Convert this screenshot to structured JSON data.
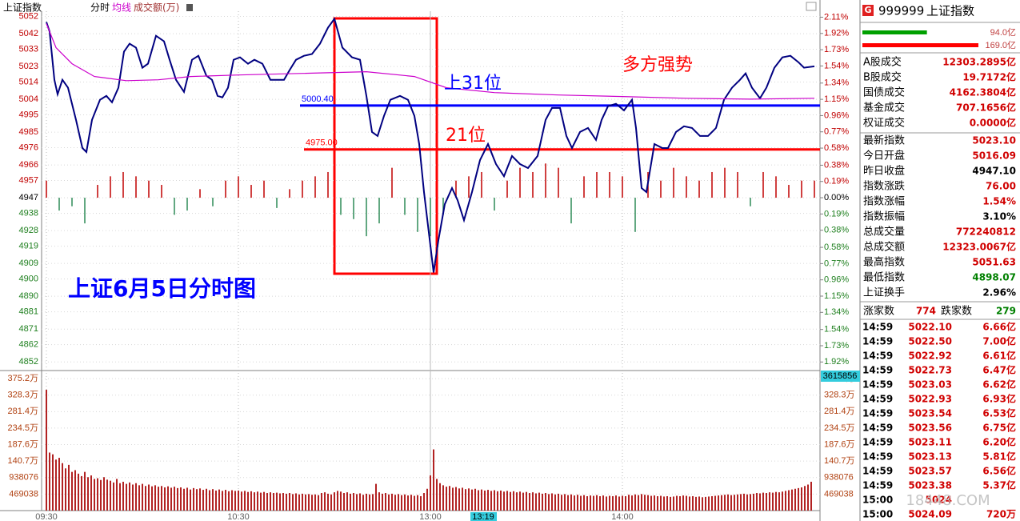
{
  "toolbar": {
    "title": "上证指数"
  },
  "chart_data": [
    {
      "type": "line",
      "xlim": [
        0,
        240
      ],
      "xticks": [
        {
          "value": 0,
          "label": "09:30"
        },
        {
          "value": 60,
          "label": "10:30"
        },
        {
          "value": 120,
          "label": "13:00"
        },
        {
          "value": 180,
          "label": "14:00"
        }
      ],
      "ylim": [
        4847,
        5055
      ],
      "yticks": [
        5052,
        5042,
        5033,
        5023,
        5014,
        5004,
        4995,
        4985,
        4976,
        4966,
        4957,
        4947,
        4938,
        4928,
        4919,
        4909,
        4900,
        4890,
        4881,
        4871,
        4862,
        4852
      ],
      "y2lim": [
        -2.02,
        2.18
      ],
      "y2ticks": [
        {
          "value": 2.11,
          "label": "2.11%"
        },
        {
          "value": 1.92,
          "label": "1.92%"
        },
        {
          "value": 1.73,
          "label": "1.73%"
        },
        {
          "value": 1.54,
          "label": "1.54%"
        },
        {
          "value": 1.34,
          "label": "1.34%"
        },
        {
          "value": 1.15,
          "label": "1.15%"
        },
        {
          "value": 0.96,
          "label": "0.96%"
        },
        {
          "value": 0.77,
          "label": "0.77%"
        },
        {
          "value": 0.58,
          "label": "0.58%"
        },
        {
          "value": 0.38,
          "label": "0.38%"
        },
        {
          "value": 0.19,
          "label": "0.19%"
        },
        {
          "value": 0,
          "label": "0.00%"
        },
        {
          "value": -0.19,
          "label": "0.19%"
        },
        {
          "value": -0.38,
          "label": "0.38%"
        },
        {
          "value": -0.58,
          "label": "0.58%"
        },
        {
          "value": -0.77,
          "label": "0.77%"
        },
        {
          "value": -0.96,
          "label": "0.96%"
        },
        {
          "value": -1.15,
          "label": "1.15%"
        },
        {
          "value": -1.34,
          "label": "1.34%"
        },
        {
          "value": -1.54,
          "label": "1.54%"
        },
        {
          "value": -1.73,
          "label": "1.73%"
        },
        {
          "value": -1.92,
          "label": "1.92%"
        }
      ],
      "grid": true,
      "series": [
        {
          "name": "分时",
          "color": "#000080",
          "x": [
            0,
            1,
            2.5,
            3.5,
            5,
            6.75,
            9.25,
            11.25,
            12.5,
            14.25,
            16.75,
            18.75,
            20.5,
            22.5,
            24.25,
            26,
            28,
            30,
            31.75,
            34.25,
            36.75,
            38.5,
            40.5,
            43,
            45.5,
            47.5,
            50,
            51.75,
            53.5,
            55,
            56.75,
            58.5,
            60.5,
            63,
            65,
            67.5,
            70,
            71.75,
            74.25,
            76,
            78,
            80.5,
            83,
            85.5,
            88,
            90,
            92.5,
            95.5,
            98,
            100,
            101.75,
            103.5,
            105.5,
            107.5,
            110.5,
            113,
            115,
            116.5,
            118,
            119.5,
            121,
            122.5,
            124.5,
            126.75,
            128.5,
            130.5,
            133,
            135.5,
            138,
            140.5,
            143,
            145.5,
            148,
            150.5,
            153.5,
            156,
            158,
            160.5,
            162.5,
            164.25,
            166.75,
            169.25,
            171.75,
            173.5,
            175.5,
            178,
            180.5,
            183,
            184.25,
            186,
            187.5,
            190,
            192.5,
            194.25,
            196.75,
            199.25,
            201.75,
            204.25,
            206.75,
            209.25,
            211.75,
            214.25,
            216.75,
            218.5,
            220.5,
            223,
            225,
            227.5,
            230,
            232.5,
            235,
            236.75,
            240
          ],
          "values": [
            5048.7,
            5043.2,
            5015.3,
            5006.9,
            5015.3,
            5010.7,
            4992.1,
            4975.8,
            4973.5,
            4992.1,
            5003.7,
            5006.0,
            5002.3,
            5010.7,
            5031.6,
            5036.2,
            5033.9,
            5022.3,
            5024.6,
            5040.8,
            5037.6,
            5026.9,
            5015.3,
            5008.3,
            5026.9,
            5029.2,
            5017.6,
            5015.3,
            5006.0,
            5005.1,
            5010.7,
            5026.9,
            5028.3,
            5024.6,
            5026.9,
            5024.6,
            5015.3,
            5015.3,
            5015.3,
            5020.9,
            5026.9,
            5029.2,
            5030.2,
            5036.2,
            5045.5,
            5050.6,
            5033.9,
            5028.3,
            5026.9,
            5006.0,
            4985.1,
            4982.8,
            4994.4,
            5003.7,
            5006.0,
            5003.7,
            4994.4,
            4978.1,
            4950.3,
            4927.0,
            4903.8,
            4922.4,
            4943.3,
            4952.6,
            4945.6,
            4934.0,
            4950.3,
            4968.8,
            4978.1,
            4966.5,
            4959.5,
            4971.2,
            4966.5,
            4964.2,
            4971.2,
            4992.1,
            4999.0,
            4999.0,
            4982.8,
            4975.8,
            4985.1,
            4987.4,
            4980.5,
            4992.1,
            5000.0,
            5001.4,
            4997.6,
            5003.7,
            4987.4,
            4952.6,
            4950.3,
            4978.1,
            4975.8,
            4975.8,
            4985.1,
            4988.4,
            4987.4,
            4982.8,
            4982.8,
            4987.4,
            5003.7,
            5010.7,
            5015.3,
            5019.0,
            5010.7,
            5004.6,
            5010.7,
            5022.3,
            5028.3,
            5029.2,
            5025.5,
            5022.3,
            5023.1
          ]
        },
        {
          "name": "均线",
          "color": "#cc00cc",
          "x": [
            0,
            3,
            8,
            15,
            25,
            35,
            45,
            60,
            80,
            100,
            115,
            125,
            140,
            160,
            180,
            200,
            220,
            240
          ],
          "values": [
            5047.8,
            5033.9,
            5024.6,
            5017.2,
            5014.8,
            5015.3,
            5017.2,
            5018.1,
            5019.0,
            5020.0,
            5017.2,
            5010.7,
            5007.9,
            5006.5,
            5005.6,
            5004.6,
            5004.1,
            5004.6
          ]
        }
      ],
      "breadth": {
        "axis": "y2",
        "up_color": "#c00000",
        "down_color": "#2e8b57",
        "x": [
          0,
          4,
          8,
          12,
          16,
          20,
          24,
          28,
          32,
          36,
          40,
          44,
          48,
          52,
          56,
          60,
          64,
          68,
          72,
          76,
          80,
          84,
          88,
          92,
          96,
          100,
          104,
          108,
          112,
          116,
          120,
          124,
          128,
          132,
          136,
          140,
          144,
          148,
          152,
          156,
          160,
          164,
          168,
          172,
          176,
          180,
          184,
          188,
          192,
          196,
          200,
          204,
          208,
          212,
          216,
          220,
          224,
          228,
          232,
          236,
          240
        ],
        "values": [
          0.2,
          -0.15,
          -0.1,
          -0.3,
          0.15,
          0.25,
          0.3,
          0.25,
          0.2,
          0.15,
          -0.2,
          -0.15,
          0.1,
          -0.1,
          0.2,
          0.25,
          0.15,
          0.2,
          -0.12,
          0.1,
          0.2,
          0.25,
          0.3,
          -0.2,
          -0.25,
          -0.45,
          -0.3,
          0.35,
          -0.2,
          -0.4,
          -0.45,
          -0.2,
          0.2,
          0.25,
          0.3,
          -0.15,
          0.2,
          0.35,
          0.3,
          0.4,
          0.35,
          -0.3,
          0.25,
          0.3,
          0.3,
          0.25,
          -0.4,
          0.3,
          0.2,
          0.35,
          0.25,
          0.2,
          0.3,
          0.35,
          0.3,
          -0.1,
          0.3,
          0.25,
          0.15,
          0.2,
          0.2
        ]
      },
      "hlines": [
        {
          "value": 5000.4,
          "label": "5000.40",
          "color": "#0000ff"
        },
        {
          "value": 4975,
          "label": "4975.00",
          "color": "#ff0000"
        }
      ]
    },
    {
      "type": "bar",
      "xlim": [
        0,
        240
      ],
      "ylim": [
        0,
        3982000
      ],
      "yticks": [
        {
          "value": 3752304,
          "label": "375.2万"
        },
        {
          "value": 3283266,
          "label": "328.3万"
        },
        {
          "value": 2814228,
          "label": "281.4万"
        },
        {
          "value": 2345190,
          "label": "234.5万"
        },
        {
          "value": 1876152,
          "label": "187.6万"
        },
        {
          "value": 1407114,
          "label": "140.7万"
        },
        938076,
        469038
      ],
      "series": [
        {
          "name": "成交额(万)",
          "color": "#b22222",
          "values": [
            3435000,
            1650000,
            1600000,
            1450000,
            1500000,
            1350000,
            1200000,
            1300000,
            1100000,
            1150000,
            1050000,
            980000,
            1100000,
            950000,
            1000000,
            900000,
            920000,
            870000,
            950000,
            880000,
            850000,
            800000,
            900000,
            780000,
            820000,
            760000,
            800000,
            740000,
            780000,
            720000,
            760000,
            700000,
            740000,
            690000,
            720000,
            680000,
            700000,
            660000,
            690000,
            650000,
            680000,
            640000,
            660000,
            620000,
            650000,
            600000,
            640000,
            610000,
            630000,
            590000,
            620000,
            580000,
            610000,
            570000,
            600000,
            560000,
            590000,
            550000,
            580000,
            560000,
            570000,
            540000,
            560000,
            530000,
            550000,
            520000,
            540000,
            510000,
            530000,
            500000,
            520000,
            500000,
            510000,
            490000,
            500000,
            480000,
            500000,
            470000,
            490000,
            460000,
            480000,
            460000,
            470000,
            450000,
            460000,
            440000,
            500000,
            520000,
            480000,
            460000,
            520000,
            560000,
            540000,
            500000,
            520000,
            480000,
            500000,
            470000,
            490000,
            450000,
            480000,
            460000,
            470000,
            760000,
            520000,
            480000,
            500000,
            460000,
            480000,
            450000,
            470000,
            440000,
            460000,
            430000,
            450000,
            420000,
            440000,
            410000,
            500000,
            620000,
            1000000,
            1740000,
            900000,
            780000,
            720000,
            680000,
            700000,
            650000,
            670000,
            630000,
            650000,
            610000,
            630000,
            600000,
            620000,
            580000,
            600000,
            570000,
            590000,
            560000,
            580000,
            550000,
            570000,
            540000,
            560000,
            530000,
            550000,
            520000,
            540000,
            510000,
            530000,
            500000,
            520000,
            490000,
            510000,
            480000,
            500000,
            470000,
            490000,
            460000,
            480000,
            450000,
            470000,
            440000,
            460000,
            430000,
            450000,
            420000,
            440000,
            410000,
            430000,
            420000,
            440000,
            410000,
            430000,
            400000,
            420000,
            410000,
            430000,
            400000,
            420000,
            410000,
            450000,
            430000,
            460000,
            440000,
            470000,
            450000,
            440000,
            420000,
            430000,
            410000,
            420000,
            400000,
            410000,
            390000,
            400000,
            420000,
            410000,
            430000,
            420000,
            400000,
            410000,
            390000,
            400000,
            380000,
            390000,
            400000,
            410000,
            420000,
            430000,
            440000,
            450000,
            460000,
            440000,
            450000,
            460000,
            470000,
            480000,
            460000,
            470000,
            480000,
            500000,
            490000,
            510000,
            500000,
            520000,
            510000,
            530000,
            520000,
            540000,
            560000,
            580000,
            600000,
            620000,
            640000,
            660000,
            700000,
            740000,
            820000
          ]
        }
      ]
    }
  ],
  "annotations": [
    "上31位",
    "21位",
    "多方强势",
    "上证6月5日分时图"
  ],
  "cursor": {
    "time": "13:19",
    "value": 3615856
  },
  "watermark": "18448.COM",
  "side_panel": {
    "badge": "G",
    "code": "999999",
    "name": "上证指数",
    "flow_bars": [
      {
        "value": 94.0,
        "label": "94.0亿",
        "color": "#00a000"
      },
      {
        "value": 169.0,
        "label": "169.0亿",
        "color": "#ff0000"
      }
    ],
    "turnover": [
      [
        "A股成交",
        "12303.2895亿"
      ],
      [
        "B股成交",
        "19.7172亿"
      ],
      [
        "国债成交",
        "4162.3804亿"
      ],
      [
        "基金成交",
        "707.1656亿"
      ],
      [
        "权证成交",
        "0.0000亿"
      ]
    ],
    "stats": [
      [
        "最新指数",
        "5023.10",
        "#d00000"
      ],
      [
        "今日开盘",
        "5016.09",
        "#d00000"
      ],
      [
        "昨日收盘",
        "4947.10",
        "#000000"
      ],
      [
        "指数涨跌",
        "76.00",
        "#d00000"
      ],
      [
        "指数涨幅",
        "1.54%",
        "#d00000"
      ],
      [
        "指数振幅",
        "3.10%",
        "#000000"
      ],
      [
        "总成交量",
        "772240812",
        "#d00000"
      ],
      [
        "总成交额",
        "12323.0067亿",
        "#d00000"
      ],
      [
        "最高指数",
        "5051.63",
        "#d00000"
      ],
      [
        "最低指数",
        "4898.07",
        "#008000"
      ],
      [
        "上证换手",
        "2.96%",
        "#000000"
      ]
    ],
    "breadth": [
      "涨家数",
      "774",
      "跌家数",
      "279"
    ],
    "ticks": [
      [
        "14:59",
        "5022.10",
        "6.66亿"
      ],
      [
        "14:59",
        "5022.50",
        "7.00亿"
      ],
      [
        "14:59",
        "5022.92",
        "6.61亿"
      ],
      [
        "14:59",
        "5022.73",
        "6.47亿"
      ],
      [
        "14:59",
        "5023.03",
        "6.62亿"
      ],
      [
        "14:59",
        "5022.93",
        "6.93亿"
      ],
      [
        "14:59",
        "5023.54",
        "6.53亿"
      ],
      [
        "14:59",
        "5023.56",
        "6.75亿"
      ],
      [
        "14:59",
        "5023.11",
        "6.20亿"
      ],
      [
        "14:59",
        "5023.13",
        "5.81亿"
      ],
      [
        "14:59",
        "5023.57",
        "6.56亿"
      ],
      [
        "14:59",
        "5023.38",
        "5.37亿"
      ],
      [
        "15:00",
        "5024"
      ],
      [
        "15:00",
        "5024.09",
        "720万"
      ]
    ]
  }
}
